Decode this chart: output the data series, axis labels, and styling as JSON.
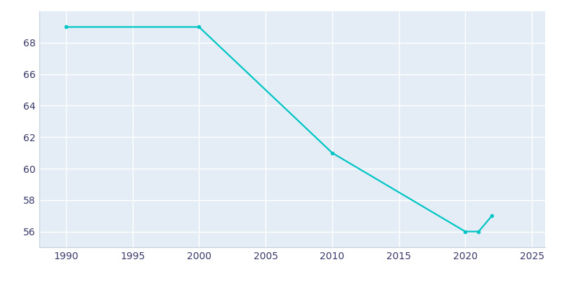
{
  "years": [
    1990,
    2000,
    2010,
    2020,
    2021,
    2022
  ],
  "population": [
    69,
    69,
    61,
    56,
    56,
    57
  ],
  "line_color": "#00C5C5",
  "marker": "o",
  "marker_size": 3.5,
  "line_width": 1.6,
  "bg_color": "#E4EDF5",
  "plot_bg_color": "#E4EDF5",
  "outer_bg_color": "#ffffff",
  "xlim": [
    1988,
    2026
  ],
  "ylim": [
    55.0,
    70.0
  ],
  "xticks": [
    1990,
    1995,
    2000,
    2005,
    2010,
    2015,
    2020,
    2025
  ],
  "yticks": [
    56,
    58,
    60,
    62,
    64,
    66,
    68
  ],
  "grid_color": "#ffffff",
  "grid_linewidth": 1.0,
  "tick_color": "#3a3a6a",
  "tick_labelsize": 10,
  "spine_color": "#c5d0de",
  "spine_linewidth": 0.8
}
